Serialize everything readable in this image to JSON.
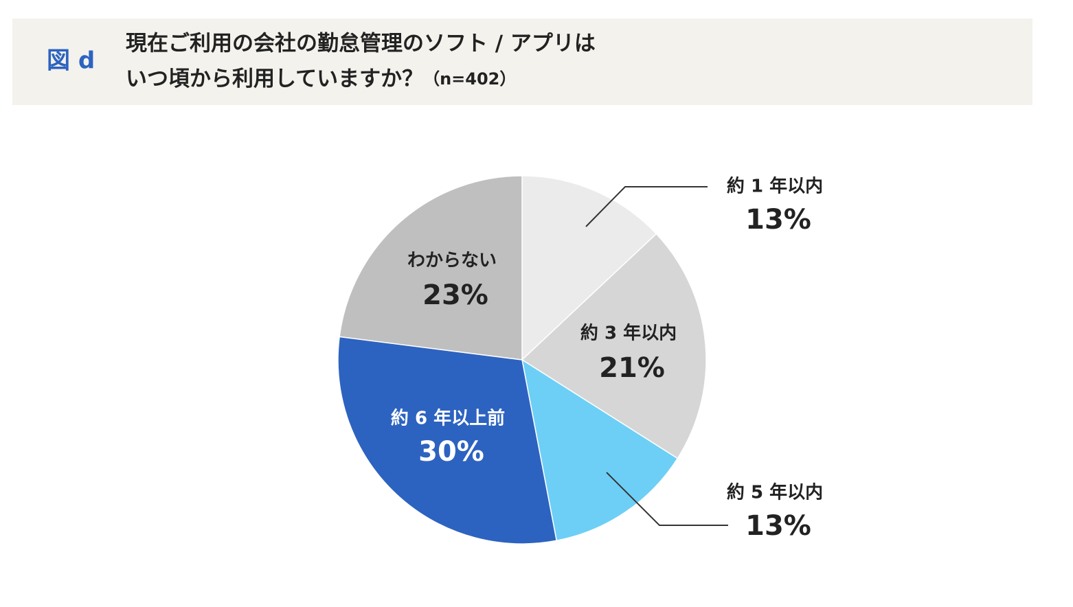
{
  "chart_data": {
    "type": "pie",
    "figure_label": "図 d",
    "title": [
      "現在ご利用の会社の勤怠管理のソフト / アプリは",
      "いつ頃から利用していますか？"
    ],
    "note": "（n=402）",
    "categories": [
      "約 1 年以内",
      "約 3 年以内",
      "約 5 年以内",
      "約 6 年以上前",
      "わからない"
    ],
    "values": [
      13,
      21,
      13,
      30,
      23
    ],
    "value_labels": [
      "13%",
      "21%",
      "13%",
      "30%",
      "23%"
    ],
    "colors": [
      "#ebebeb",
      "#d6d6d6",
      "#6dcff6",
      "#2d63c0",
      "#bfbfbf"
    ]
  }
}
